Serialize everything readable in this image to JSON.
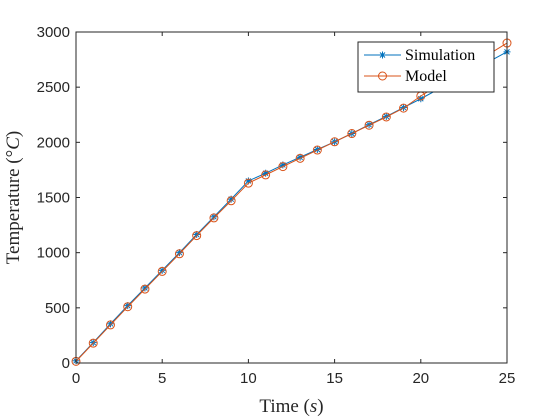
{
  "chart_data": {
    "type": "line",
    "xlabel": "Time (s)",
    "xlabel_parts": {
      "pre": "Time (",
      "var": "s",
      "post": ")"
    },
    "ylabel": "Temperature (°C)",
    "ylabel_parts": {
      "pre": "Temperature (",
      "deg": "°",
      "var": "C",
      "post": ")"
    },
    "xlim": [
      0,
      25
    ],
    "ylim": [
      0,
      3000
    ],
    "xticks": [
      0,
      5,
      10,
      15,
      20,
      25
    ],
    "yticks": [
      0,
      500,
      1000,
      1500,
      2000,
      2500,
      3000
    ],
    "grid": false,
    "legend_position": "top-right",
    "series": [
      {
        "name": "Simulation",
        "color": "#0072bd",
        "marker": "asterisk",
        "x": [
          0,
          1,
          2,
          3,
          4,
          5,
          6,
          7,
          8,
          9,
          10,
          11,
          12,
          13,
          14,
          15,
          16,
          17,
          18,
          19,
          20,
          25
        ],
        "y": [
          20,
          185,
          355,
          520,
          680,
          840,
          1000,
          1165,
          1325,
          1485,
          1650,
          1720,
          1795,
          1865,
          1935,
          2005,
          2080,
          2160,
          2235,
          2315,
          2395,
          2820
        ]
      },
      {
        "name": "Model",
        "color": "#d95319",
        "marker": "circle",
        "x": [
          0,
          1,
          2,
          3,
          4,
          5,
          6,
          7,
          8,
          9,
          10,
          11,
          12,
          13,
          14,
          15,
          16,
          17,
          18,
          19,
          20,
          25
        ],
        "y": [
          15,
          180,
          345,
          510,
          670,
          830,
          990,
          1155,
          1315,
          1470,
          1630,
          1705,
          1780,
          1855,
          1930,
          2005,
          2080,
          2155,
          2230,
          2310,
          2420,
          2900
        ]
      }
    ]
  }
}
